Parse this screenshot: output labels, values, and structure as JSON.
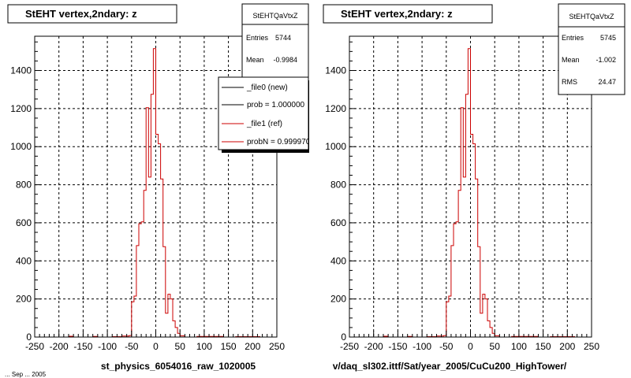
{
  "chart_data": [
    {
      "type": "histogram",
      "title": "StEHT  vertex,2ndary: z",
      "xlabel": "st_physics_6054016_raw_1020005",
      "xlim": [
        -250,
        250
      ],
      "ylim": [
        0,
        1580
      ],
      "xticks": [
        -250,
        -200,
        -150,
        -100,
        -50,
        0,
        50,
        100,
        150,
        200,
        250
      ],
      "yticks": [
        0,
        200,
        400,
        600,
        800,
        1000,
        1200,
        1400
      ],
      "grid": true,
      "stats": {
        "name": "StEHTQaVtxZ",
        "rows": [
          {
            "label": "Entries",
            "value": "5744"
          },
          {
            "label": "Mean",
            "value": "-0.9984"
          }
        ]
      },
      "legend": {
        "placement": "top-right",
        "entries": [
          {
            "label": "_file0 (new)",
            "color": "#000000"
          },
          {
            "label": "prob = 1.000000",
            "color": "#000000"
          },
          {
            "label": "_file1 (ref)",
            "color": "#cc0000"
          },
          {
            "label": "probN = 0.999970",
            "color": "#cc0000"
          }
        ]
      },
      "series": [
        {
          "color": "#cc0000",
          "bin_width": 5,
          "bins": [
            {
              "x": -220,
              "y": 0
            },
            {
              "x": -180,
              "y": 4
            },
            {
              "x": -170,
              "y": 0
            },
            {
              "x": -130,
              "y": 3
            },
            {
              "x": -120,
              "y": 0
            },
            {
              "x": -90,
              "y": 2
            },
            {
              "x": -70,
              "y": 5
            },
            {
              "x": -55,
              "y": 8
            },
            {
              "x": -50,
              "y": 185
            },
            {
              "x": -45,
              "y": 215
            },
            {
              "x": -40,
              "y": 480
            },
            {
              "x": -35,
              "y": 595
            },
            {
              "x": -30,
              "y": 605
            },
            {
              "x": -25,
              "y": 770
            },
            {
              "x": -20,
              "y": 1205
            },
            {
              "x": -15,
              "y": 840
            },
            {
              "x": -10,
              "y": 1275
            },
            {
              "x": -5,
              "y": 1515
            },
            {
              "x": 0,
              "y": 1065
            },
            {
              "x": 5,
              "y": 1015
            },
            {
              "x": 10,
              "y": 830
            },
            {
              "x": 15,
              "y": 475
            },
            {
              "x": 20,
              "y": 125
            },
            {
              "x": 25,
              "y": 225
            },
            {
              "x": 30,
              "y": 200
            },
            {
              "x": 35,
              "y": 85
            },
            {
              "x": 40,
              "y": 50
            },
            {
              "x": 45,
              "y": 20
            },
            {
              "x": 50,
              "y": 6
            },
            {
              "x": 60,
              "y": 0
            },
            {
              "x": 85,
              "y": 3
            },
            {
              "x": 140,
              "y": 0
            },
            {
              "x": 165,
              "y": 2
            },
            {
              "x": 215,
              "y": 0
            }
          ]
        }
      ]
    },
    {
      "type": "histogram",
      "title": "StEHT  vertex,2ndary: z",
      "xlabel": "v/daq_sl302.ittf/Sat/year_2005/CuCu200_HighTower/",
      "xlim": [
        -250,
        250
      ],
      "ylim": [
        0,
        1580
      ],
      "xticks": [
        -250,
        -200,
        -150,
        -100,
        -50,
        0,
        50,
        100,
        150,
        200,
        250
      ],
      "yticks": [
        0,
        200,
        400,
        600,
        800,
        1000,
        1200,
        1400
      ],
      "grid": true,
      "stats": {
        "name": "StEHTQaVtxZ",
        "rows": [
          {
            "label": "Entries",
            "value": "5745"
          },
          {
            "label": "Mean",
            "value": "-1.002"
          },
          {
            "label": "RMS",
            "value": "24.47"
          }
        ]
      },
      "series": [
        {
          "color": "#cc0000",
          "bin_width": 5,
          "bins": [
            {
              "x": -220,
              "y": 0
            },
            {
              "x": -180,
              "y": 4
            },
            {
              "x": -170,
              "y": 0
            },
            {
              "x": -130,
              "y": 3
            },
            {
              "x": -120,
              "y": 0
            },
            {
              "x": -90,
              "y": 2
            },
            {
              "x": -70,
              "y": 5
            },
            {
              "x": -55,
              "y": 8
            },
            {
              "x": -50,
              "y": 185
            },
            {
              "x": -45,
              "y": 215
            },
            {
              "x": -40,
              "y": 480
            },
            {
              "x": -35,
              "y": 595
            },
            {
              "x": -30,
              "y": 605
            },
            {
              "x": -25,
              "y": 770
            },
            {
              "x": -20,
              "y": 1205
            },
            {
              "x": -15,
              "y": 840
            },
            {
              "x": -10,
              "y": 1275
            },
            {
              "x": -5,
              "y": 1515
            },
            {
              "x": 0,
              "y": 1065
            },
            {
              "x": 5,
              "y": 1015
            },
            {
              "x": 10,
              "y": 830
            },
            {
              "x": 15,
              "y": 475
            },
            {
              "x": 20,
              "y": 125
            },
            {
              "x": 25,
              "y": 225
            },
            {
              "x": 30,
              "y": 200
            },
            {
              "x": 35,
              "y": 85
            },
            {
              "x": 40,
              "y": 50
            },
            {
              "x": 45,
              "y": 20
            },
            {
              "x": 50,
              "y": 6
            },
            {
              "x": 60,
              "y": 0
            },
            {
              "x": 85,
              "y": 3
            },
            {
              "x": 140,
              "y": 0
            },
            {
              "x": 165,
              "y": 2
            },
            {
              "x": 215,
              "y": 0
            }
          ]
        }
      ]
    }
  ],
  "footer": {
    "fragment": "... Sep  ... 2005"
  }
}
